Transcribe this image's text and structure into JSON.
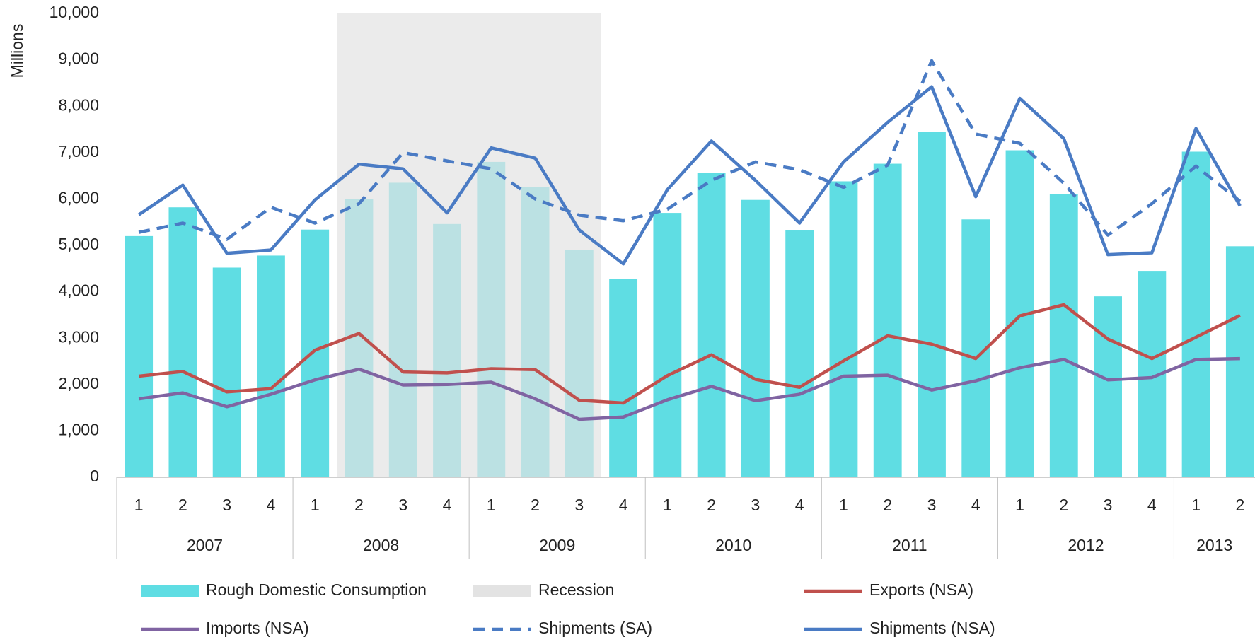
{
  "chart_data": {
    "type": "bar-line",
    "y_label": "Millions",
    "categories": [
      "1",
      "2",
      "3",
      "4",
      "1",
      "2",
      "3",
      "4",
      "1",
      "2",
      "3",
      "4",
      "1",
      "2",
      "3",
      "4",
      "1",
      "2",
      "3",
      "4",
      "1",
      "2",
      "3",
      "4",
      "1",
      "2"
    ],
    "groups": [
      {
        "label": "2007",
        "count": 4
      },
      {
        "label": "2008",
        "count": 4
      },
      {
        "label": "2009",
        "count": 4
      },
      {
        "label": "2010",
        "count": 4
      },
      {
        "label": "2011",
        "count": 4
      },
      {
        "label": "2012",
        "count": 4
      },
      {
        "label": "2013",
        "count": 2
      }
    ],
    "recession": {
      "name": "Recession",
      "color": "#e3e3e3",
      "start_index": 5,
      "end_index": 10
    },
    "series": [
      {
        "name": "Rough Domestic Consumption",
        "type": "bar",
        "color": "#5fdde3",
        "values": [
          5200,
          5820,
          4520,
          4780,
          5340,
          6000,
          6350,
          5460,
          6800,
          6250,
          4900,
          4280,
          5700,
          6560,
          5980,
          5320,
          6380,
          6760,
          7440,
          5560,
          7050,
          6100,
          3900,
          4450,
          7020,
          4980
        ]
      },
      {
        "name": "Exports (NSA)",
        "type": "line",
        "color": "#c0504d",
        "values": [
          2180,
          2280,
          1840,
          1910,
          2740,
          3100,
          2270,
          2250,
          2340,
          2320,
          1660,
          1600,
          2190,
          2640,
          2110,
          1940,
          2510,
          3050,
          2870,
          2560,
          3480,
          3720,
          2980,
          2560,
          3020,
          3490
        ]
      },
      {
        "name": "Imports (NSA)",
        "type": "line",
        "color": "#8064a2",
        "values": [
          1690,
          1820,
          1520,
          1790,
          2100,
          2330,
          1990,
          2000,
          2050,
          1690,
          1250,
          1300,
          1670,
          1960,
          1650,
          1790,
          2180,
          2200,
          1880,
          2080,
          2360,
          2540,
          2100,
          2150,
          2540,
          2560
        ]
      },
      {
        "name": "Shipments (SA)",
        "type": "line",
        "dashed": true,
        "color": "#4a7bc4",
        "values": [
          5280,
          5480,
          5130,
          5820,
          5480,
          5900,
          7000,
          6820,
          6650,
          6000,
          5650,
          5530,
          5780,
          6400,
          6800,
          6630,
          6250,
          6730,
          8980,
          7400,
          7200,
          6340,
          5220,
          5900,
          6710,
          5950
        ]
      },
      {
        "name": "Shipments (NSA)",
        "type": "line",
        "color": "#4a7bc4",
        "values": [
          5660,
          6300,
          4830,
          4900,
          5980,
          6750,
          6650,
          5700,
          7100,
          6880,
          5330,
          4600,
          6200,
          7250,
          6400,
          5480,
          6800,
          7650,
          8420,
          6050,
          8170,
          7300,
          4800,
          4840,
          7520,
          5850
        ]
      }
    ],
    "ylim": [
      0,
      10000
    ],
    "yticks": [
      0,
      {
        "value": 1000,
        "label": "1,000"
      },
      {
        "value": 2000,
        "label": "2,000"
      },
      {
        "value": 3000,
        "label": "3,000"
      },
      {
        "value": 4000,
        "label": "4,000"
      },
      {
        "value": 5000,
        "label": "5,000"
      },
      {
        "value": 6000,
        "label": "6,000"
      },
      {
        "value": 7000,
        "label": "7,000"
      },
      {
        "value": 8000,
        "label": "8,000"
      },
      {
        "value": 9000,
        "label": "9,000"
      },
      {
        "value": 10000,
        "label": "10,000"
      }
    ]
  }
}
